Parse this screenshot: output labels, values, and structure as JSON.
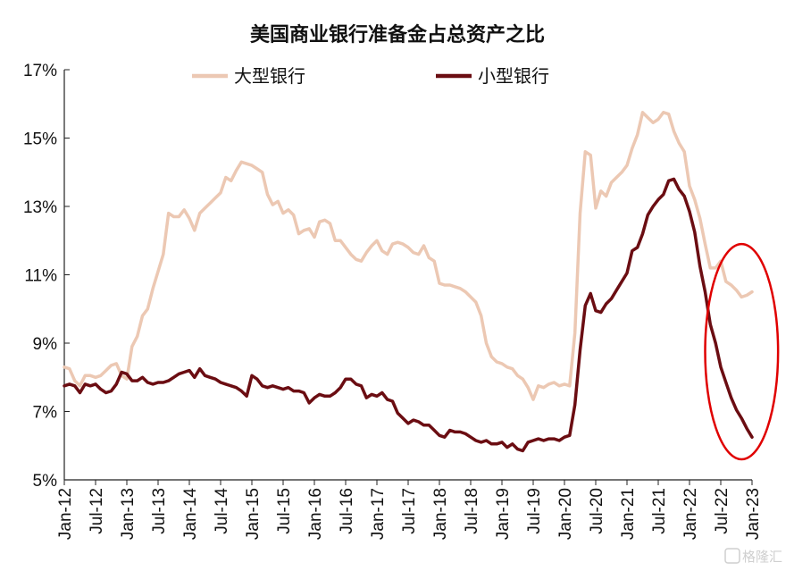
{
  "chart_data": {
    "type": "line",
    "title": "美国商业银行准备金占总资产之比",
    "xlabel": "",
    "ylabel": "",
    "ylim": [
      5,
      17
    ],
    "yticks": [
      5,
      7,
      9,
      11,
      13,
      15,
      17
    ],
    "ytick_labels": [
      "5%",
      "7%",
      "9%",
      "11%",
      "13%",
      "15%",
      "17%"
    ],
    "xlim": [
      "2012-01",
      "2023-01"
    ],
    "xtick_labels": [
      "Jan-12",
      "Jul-12",
      "Jan-13",
      "Jul-13",
      "Jan-14",
      "Jul-14",
      "Jan-15",
      "Jul-15",
      "Jan-16",
      "Jul-16",
      "Jan-17",
      "Jul-17",
      "Jan-18",
      "Jul-18",
      "Jan-19",
      "Jul-19",
      "Jan-20",
      "Jul-20",
      "Jan-21",
      "Jul-21",
      "Jan-22",
      "Jul-22",
      "Jan-23"
    ],
    "grid": false,
    "legend_position": "top",
    "series": [
      {
        "name": "大型银行",
        "color": "#ecc8b3",
        "points": [
          [
            "2012-01",
            8.3
          ],
          [
            "2012-02",
            8.25
          ],
          [
            "2012-03",
            7.9
          ],
          [
            "2012-04",
            7.75
          ],
          [
            "2012-05",
            8.05
          ],
          [
            "2012-06",
            8.05
          ],
          [
            "2012-07",
            8.0
          ],
          [
            "2012-08",
            8.05
          ],
          [
            "2012-09",
            8.2
          ],
          [
            "2012-10",
            8.35
          ],
          [
            "2012-11",
            8.4
          ],
          [
            "2012-12",
            8.05
          ],
          [
            "2013-01",
            7.95
          ],
          [
            "2013-02",
            8.9
          ],
          [
            "2013-03",
            9.2
          ],
          [
            "2013-04",
            9.8
          ],
          [
            "2013-05",
            10.0
          ],
          [
            "2013-06",
            10.6
          ],
          [
            "2013-07",
            11.1
          ],
          [
            "2013-08",
            11.6
          ],
          [
            "2013-09",
            12.8
          ],
          [
            "2013-10",
            12.7
          ],
          [
            "2013-11",
            12.7
          ],
          [
            "2013-12",
            12.9
          ],
          [
            "2014-01",
            12.65
          ],
          [
            "2014-02",
            12.3
          ],
          [
            "2014-03",
            12.8
          ],
          [
            "2014-04",
            12.95
          ],
          [
            "2014-05",
            13.1
          ],
          [
            "2014-06",
            13.25
          ],
          [
            "2014-07",
            13.4
          ],
          [
            "2014-08",
            13.85
          ],
          [
            "2014-09",
            13.75
          ],
          [
            "2014-10",
            14.05
          ],
          [
            "2014-11",
            14.3
          ],
          [
            "2014-12",
            14.25
          ],
          [
            "2015-01",
            14.2
          ],
          [
            "2015-02",
            14.1
          ],
          [
            "2015-03",
            14.0
          ],
          [
            "2015-04",
            13.35
          ],
          [
            "2015-05",
            13.05
          ],
          [
            "2015-06",
            13.15
          ],
          [
            "2015-07",
            12.8
          ],
          [
            "2015-08",
            12.9
          ],
          [
            "2015-09",
            12.75
          ],
          [
            "2015-10",
            12.2
          ],
          [
            "2015-11",
            12.3
          ],
          [
            "2015-12",
            12.35
          ],
          [
            "2016-01",
            12.1
          ],
          [
            "2016-02",
            12.55
          ],
          [
            "2016-03",
            12.6
          ],
          [
            "2016-04",
            12.5
          ],
          [
            "2016-05",
            12.0
          ],
          [
            "2016-06",
            12.0
          ],
          [
            "2016-07",
            11.8
          ],
          [
            "2016-08",
            11.6
          ],
          [
            "2016-09",
            11.45
          ],
          [
            "2016-10",
            11.4
          ],
          [
            "2016-11",
            11.65
          ],
          [
            "2016-12",
            11.85
          ],
          [
            "2017-01",
            12.0
          ],
          [
            "2017-02",
            11.7
          ],
          [
            "2017-03",
            11.6
          ],
          [
            "2017-04",
            11.9
          ],
          [
            "2017-05",
            11.95
          ],
          [
            "2017-06",
            11.9
          ],
          [
            "2017-07",
            11.8
          ],
          [
            "2017-08",
            11.65
          ],
          [
            "2017-09",
            11.6
          ],
          [
            "2017-10",
            11.85
          ],
          [
            "2017-11",
            11.5
          ],
          [
            "2017-12",
            11.4
          ],
          [
            "2018-01",
            10.75
          ],
          [
            "2018-02",
            10.7
          ],
          [
            "2018-03",
            10.7
          ],
          [
            "2018-04",
            10.65
          ],
          [
            "2018-05",
            10.6
          ],
          [
            "2018-06",
            10.5
          ],
          [
            "2018-07",
            10.35
          ],
          [
            "2018-08",
            10.2
          ],
          [
            "2018-09",
            9.8
          ],
          [
            "2018-10",
            9.0
          ],
          [
            "2018-11",
            8.6
          ],
          [
            "2018-12",
            8.45
          ],
          [
            "2019-01",
            8.4
          ],
          [
            "2019-02",
            8.3
          ],
          [
            "2019-03",
            8.25
          ],
          [
            "2019-04",
            8.05
          ],
          [
            "2019-05",
            7.95
          ],
          [
            "2019-06",
            7.7
          ],
          [
            "2019-07",
            7.35
          ],
          [
            "2019-08",
            7.75
          ],
          [
            "2019-09",
            7.7
          ],
          [
            "2019-10",
            7.8
          ],
          [
            "2019-11",
            7.85
          ],
          [
            "2019-12",
            7.75
          ],
          [
            "2020-01",
            7.8
          ],
          [
            "2020-02",
            7.75
          ],
          [
            "2020-03",
            9.3
          ],
          [
            "2020-04",
            12.8
          ],
          [
            "2020-05",
            14.6
          ],
          [
            "2020-06",
            14.5
          ],
          [
            "2020-07",
            12.95
          ],
          [
            "2020-08",
            13.45
          ],
          [
            "2020-09",
            13.3
          ],
          [
            "2020-10",
            13.7
          ],
          [
            "2020-11",
            13.85
          ],
          [
            "2020-12",
            14.0
          ],
          [
            "2021-01",
            14.2
          ],
          [
            "2021-02",
            14.7
          ],
          [
            "2021-03",
            15.1
          ],
          [
            "2021-04",
            15.75
          ],
          [
            "2021-05",
            15.6
          ],
          [
            "2021-06",
            15.45
          ],
          [
            "2021-07",
            15.55
          ],
          [
            "2021-08",
            15.75
          ],
          [
            "2021-09",
            15.7
          ],
          [
            "2021-10",
            15.2
          ],
          [
            "2021-11",
            14.85
          ],
          [
            "2021-12",
            14.6
          ],
          [
            "2022-01",
            13.6
          ],
          [
            "2022-02",
            13.2
          ],
          [
            "2022-03",
            12.65
          ],
          [
            "2022-04",
            11.9
          ],
          [
            "2022-05",
            11.2
          ],
          [
            "2022-06",
            11.2
          ],
          [
            "2022-07",
            11.4
          ],
          [
            "2022-08",
            10.8
          ],
          [
            "2022-09",
            10.7
          ],
          [
            "2022-10",
            10.55
          ],
          [
            "2022-11",
            10.35
          ],
          [
            "2022-12",
            10.4
          ],
          [
            "2023-01",
            10.5
          ]
        ]
      },
      {
        "name": "小型银行",
        "color": "#6b0d12",
        "points": [
          [
            "2012-01",
            7.75
          ],
          [
            "2012-02",
            7.8
          ],
          [
            "2012-03",
            7.75
          ],
          [
            "2012-04",
            7.55
          ],
          [
            "2012-05",
            7.8
          ],
          [
            "2012-06",
            7.75
          ],
          [
            "2012-07",
            7.8
          ],
          [
            "2012-08",
            7.65
          ],
          [
            "2012-09",
            7.55
          ],
          [
            "2012-10",
            7.6
          ],
          [
            "2012-11",
            7.8
          ],
          [
            "2012-12",
            8.15
          ],
          [
            "2013-01",
            8.1
          ],
          [
            "2013-02",
            7.9
          ],
          [
            "2013-03",
            7.9
          ],
          [
            "2013-04",
            8.0
          ],
          [
            "2013-05",
            7.85
          ],
          [
            "2013-06",
            7.8
          ],
          [
            "2013-07",
            7.85
          ],
          [
            "2013-08",
            7.85
          ],
          [
            "2013-09",
            7.9
          ],
          [
            "2013-10",
            8.0
          ],
          [
            "2013-11",
            8.1
          ],
          [
            "2013-12",
            8.15
          ],
          [
            "2014-01",
            8.2
          ],
          [
            "2014-02",
            8.0
          ],
          [
            "2014-03",
            8.25
          ],
          [
            "2014-04",
            8.05
          ],
          [
            "2014-05",
            8.0
          ],
          [
            "2014-06",
            7.95
          ],
          [
            "2014-07",
            7.85
          ],
          [
            "2014-08",
            7.8
          ],
          [
            "2014-09",
            7.75
          ],
          [
            "2014-10",
            7.7
          ],
          [
            "2014-11",
            7.6
          ],
          [
            "2014-12",
            7.45
          ],
          [
            "2015-01",
            8.05
          ],
          [
            "2015-02",
            7.95
          ],
          [
            "2015-03",
            7.75
          ],
          [
            "2015-04",
            7.7
          ],
          [
            "2015-05",
            7.75
          ],
          [
            "2015-06",
            7.7
          ],
          [
            "2015-07",
            7.65
          ],
          [
            "2015-08",
            7.7
          ],
          [
            "2015-09",
            7.6
          ],
          [
            "2015-10",
            7.6
          ],
          [
            "2015-11",
            7.55
          ],
          [
            "2015-12",
            7.25
          ],
          [
            "2016-01",
            7.4
          ],
          [
            "2016-02",
            7.5
          ],
          [
            "2016-03",
            7.45
          ],
          [
            "2016-04",
            7.45
          ],
          [
            "2016-05",
            7.55
          ],
          [
            "2016-06",
            7.7
          ],
          [
            "2016-07",
            7.95
          ],
          [
            "2016-08",
            7.95
          ],
          [
            "2016-09",
            7.8
          ],
          [
            "2016-10",
            7.75
          ],
          [
            "2016-11",
            7.4
          ],
          [
            "2016-12",
            7.5
          ],
          [
            "2017-01",
            7.45
          ],
          [
            "2017-02",
            7.55
          ],
          [
            "2017-03",
            7.35
          ],
          [
            "2017-04",
            7.3
          ],
          [
            "2017-05",
            6.95
          ],
          [
            "2017-06",
            6.8
          ],
          [
            "2017-07",
            6.65
          ],
          [
            "2017-08",
            6.75
          ],
          [
            "2017-09",
            6.7
          ],
          [
            "2017-10",
            6.6
          ],
          [
            "2017-11",
            6.6
          ],
          [
            "2017-12",
            6.45
          ],
          [
            "2018-01",
            6.3
          ],
          [
            "2018-02",
            6.25
          ],
          [
            "2018-03",
            6.45
          ],
          [
            "2018-04",
            6.4
          ],
          [
            "2018-05",
            6.4
          ],
          [
            "2018-06",
            6.35
          ],
          [
            "2018-07",
            6.25
          ],
          [
            "2018-08",
            6.15
          ],
          [
            "2018-09",
            6.1
          ],
          [
            "2018-10",
            6.15
          ],
          [
            "2018-11",
            6.05
          ],
          [
            "2018-12",
            6.05
          ],
          [
            "2019-01",
            6.1
          ],
          [
            "2019-02",
            5.95
          ],
          [
            "2019-03",
            6.05
          ],
          [
            "2019-04",
            5.9
          ],
          [
            "2019-05",
            5.85
          ],
          [
            "2019-06",
            6.1
          ],
          [
            "2019-07",
            6.15
          ],
          [
            "2019-08",
            6.2
          ],
          [
            "2019-09",
            6.15
          ],
          [
            "2019-10",
            6.2
          ],
          [
            "2019-11",
            6.2
          ],
          [
            "2019-12",
            6.15
          ],
          [
            "2020-01",
            6.25
          ],
          [
            "2020-02",
            6.3
          ],
          [
            "2020-03",
            7.2
          ],
          [
            "2020-04",
            8.8
          ],
          [
            "2020-05",
            10.1
          ],
          [
            "2020-06",
            10.45
          ],
          [
            "2020-07",
            9.95
          ],
          [
            "2020-08",
            9.9
          ],
          [
            "2020-09",
            10.15
          ],
          [
            "2020-10",
            10.3
          ],
          [
            "2020-11",
            10.55
          ],
          [
            "2020-12",
            10.8
          ],
          [
            "2021-01",
            11.05
          ],
          [
            "2021-02",
            11.7
          ],
          [
            "2021-03",
            11.8
          ],
          [
            "2021-04",
            12.2
          ],
          [
            "2021-05",
            12.75
          ],
          [
            "2021-06",
            13.0
          ],
          [
            "2021-07",
            13.2
          ],
          [
            "2021-08",
            13.35
          ],
          [
            "2021-09",
            13.75
          ],
          [
            "2021-10",
            13.8
          ],
          [
            "2021-11",
            13.5
          ],
          [
            "2021-12",
            13.3
          ],
          [
            "2022-01",
            12.85
          ],
          [
            "2022-02",
            12.25
          ],
          [
            "2022-03",
            11.25
          ],
          [
            "2022-04",
            10.5
          ],
          [
            "2022-05",
            9.55
          ],
          [
            "2022-06",
            9.0
          ],
          [
            "2022-07",
            8.3
          ],
          [
            "2022-08",
            7.85
          ],
          [
            "2022-09",
            7.4
          ],
          [
            "2022-10",
            7.05
          ],
          [
            "2022-11",
            6.8
          ],
          [
            "2022-12",
            6.5
          ],
          [
            "2023-01",
            6.25
          ]
        ]
      }
    ],
    "annotations": [
      {
        "type": "ellipse",
        "color": "#e00000",
        "x_center": "2022-11",
        "y_center": 8.75,
        "x_span_months": 14,
        "y_span": 6.3
      }
    ]
  },
  "watermark": "格隆汇"
}
